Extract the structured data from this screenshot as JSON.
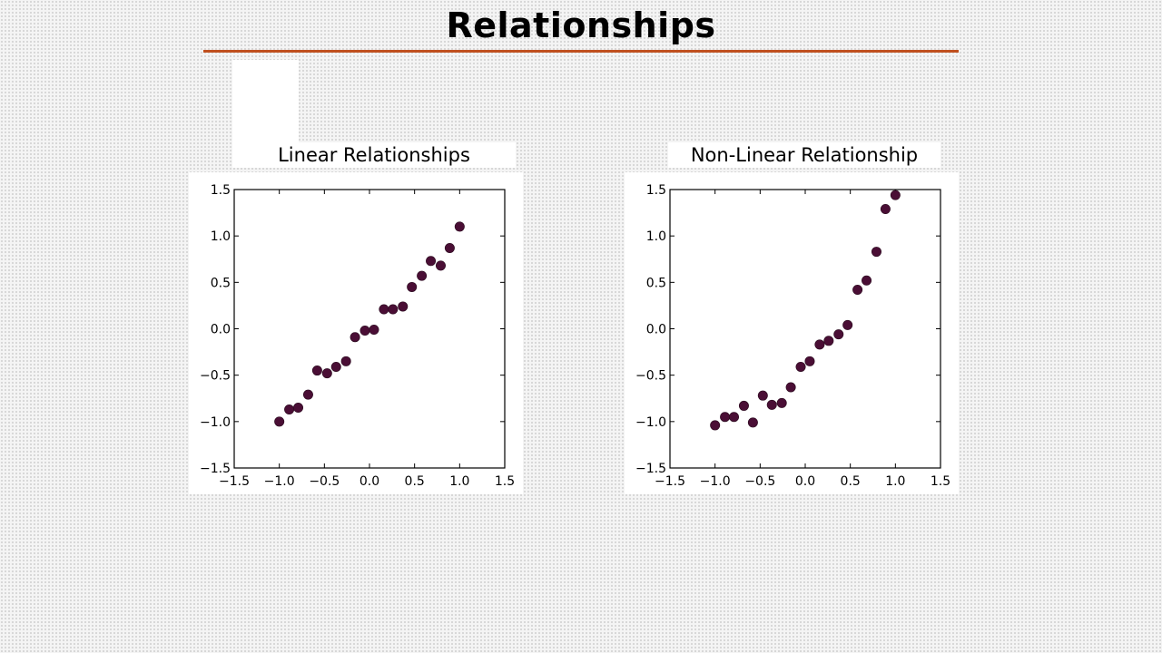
{
  "slide": {
    "title": "Relationships"
  },
  "colors": {
    "accent": "#c0501f",
    "marker": "#4a0e35"
  },
  "chart_data": [
    {
      "type": "scatter",
      "title": "Linear Relationships",
      "xlabel": "",
      "ylabel": "",
      "xlim": [
        -1.5,
        1.5
      ],
      "ylim": [
        -1.5,
        1.5
      ],
      "xticks": [
        -1.5,
        -1.0,
        -0.5,
        0.0,
        0.5,
        1.0,
        1.5
      ],
      "yticks": [
        -1.5,
        -1.0,
        -0.5,
        0.0,
        0.5,
        1.0,
        1.5
      ],
      "xtick_labels": [
        "−1.5",
        "−1.0",
        "−0.5",
        "0.0",
        "0.5",
        "1.0",
        "1.5"
      ],
      "ytick_labels": [
        "−1.5",
        "−1.0",
        "−0.5",
        "0.0",
        "0.5",
        "1.0",
        "1.5"
      ],
      "grid": false,
      "series": [
        {
          "x": [
            -1.0,
            -0.89,
            -0.79,
            -0.68,
            -0.58,
            -0.47,
            -0.37,
            -0.26,
            -0.16,
            -0.05,
            0.05,
            0.16,
            0.26,
            0.37,
            0.47,
            0.58,
            0.68,
            0.79,
            0.89,
            1.0
          ],
          "y": [
            -1.0,
            -0.87,
            -0.85,
            -0.71,
            -0.45,
            -0.48,
            -0.41,
            -0.35,
            -0.09,
            -0.02,
            -0.01,
            0.21,
            0.21,
            0.24,
            0.45,
            0.57,
            0.73,
            0.68,
            0.87,
            1.1
          ]
        }
      ]
    },
    {
      "type": "scatter",
      "title": "Non-Linear Relationship",
      "xlabel": "",
      "ylabel": "",
      "xlim": [
        -1.5,
        1.5
      ],
      "ylim": [
        -1.5,
        1.5
      ],
      "xticks": [
        -1.5,
        -1.0,
        -0.5,
        0.0,
        0.5,
        1.0,
        1.5
      ],
      "yticks": [
        -1.5,
        -1.0,
        -0.5,
        0.0,
        0.5,
        1.0,
        1.5
      ],
      "xtick_labels": [
        "−1.5",
        "−1.0",
        "−0.5",
        "0.0",
        "0.5",
        "1.0",
        "1.5"
      ],
      "ytick_labels": [
        "−1.5",
        "−1.0",
        "−0.5",
        "0.0",
        "0.5",
        "1.0",
        "1.5"
      ],
      "grid": false,
      "series": [
        {
          "x": [
            -1.0,
            -0.89,
            -0.79,
            -0.68,
            -0.58,
            -0.47,
            -0.37,
            -0.26,
            -0.16,
            -0.05,
            0.05,
            0.16,
            0.26,
            0.37,
            0.47,
            0.58,
            0.68,
            0.79,
            0.89,
            1.0
          ],
          "y": [
            -1.04,
            -0.95,
            -0.95,
            -0.83,
            -1.01,
            -0.72,
            -0.82,
            -0.8,
            -0.63,
            -0.41,
            -0.35,
            -0.17,
            -0.13,
            -0.06,
            0.04,
            0.42,
            0.52,
            0.83,
            1.29,
            1.44
          ]
        }
      ]
    }
  ]
}
